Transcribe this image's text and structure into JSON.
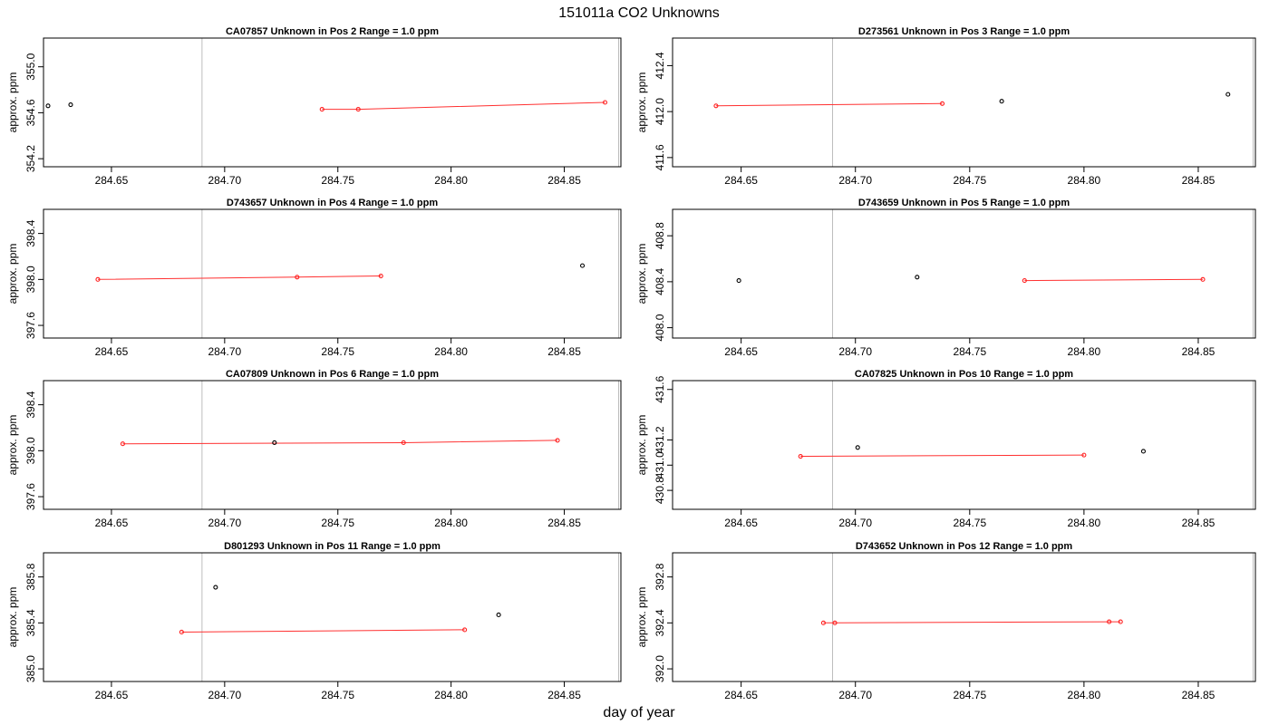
{
  "figure": {
    "title": "151011a  CO2 Unknowns",
    "xlabel": "day of year"
  },
  "chart_data": [
    {
      "type": "scatter",
      "title": "CA07857    Unknown in Pos 2         Range = 1.0 ppm",
      "ylabel": "approx. ppm",
      "xlim": [
        284.62,
        284.875
      ],
      "ylim": [
        354.13,
        355.25
      ],
      "x_ticks": [
        284.65,
        284.7,
        284.75,
        284.8,
        284.85
      ],
      "y_ticks": [
        354.2,
        354.6,
        355.0
      ],
      "vlines": [
        284.69,
        284.874
      ],
      "points": [
        {
          "x": 284.622,
          "y": 354.66,
          "color": "black"
        },
        {
          "x": 284.632,
          "y": 354.67,
          "color": "black"
        },
        {
          "x": 284.743,
          "y": 354.63,
          "color": "red"
        },
        {
          "x": 284.759,
          "y": 354.63,
          "color": "red"
        },
        {
          "x": 284.868,
          "y": 354.69,
          "color": "red"
        }
      ],
      "line": [
        [
          284.743,
          354.63
        ],
        [
          284.759,
          354.63
        ],
        [
          284.868,
          354.69
        ]
      ]
    },
    {
      "type": "scatter",
      "title": "D273561    Unknown in Pos 3         Range = 1.0 ppm",
      "ylabel": "approx. ppm",
      "xlim": [
        284.62,
        284.875
      ],
      "ylim": [
        411.52,
        412.64
      ],
      "x_ticks": [
        284.65,
        284.7,
        284.75,
        284.8,
        284.85
      ],
      "y_ticks": [
        411.6,
        412.0,
        412.4
      ],
      "vlines": [
        284.69,
        284.874
      ],
      "points": [
        {
          "x": 284.639,
          "y": 412.05,
          "color": "red"
        },
        {
          "x": 284.738,
          "y": 412.07,
          "color": "red"
        },
        {
          "x": 284.764,
          "y": 412.09,
          "color": "black"
        },
        {
          "x": 284.863,
          "y": 412.15,
          "color": "black"
        }
      ],
      "line": [
        [
          284.639,
          412.05
        ],
        [
          284.738,
          412.07
        ]
      ]
    },
    {
      "type": "scatter",
      "title": "D743657    Unknown in Pos 4         Range = 1.0 ppm",
      "ylabel": "approx. ppm",
      "xlim": [
        284.62,
        284.875
      ],
      "ylim": [
        397.49,
        398.61
      ],
      "x_ticks": [
        284.65,
        284.7,
        284.75,
        284.8,
        284.85
      ],
      "y_ticks": [
        397.6,
        398.0,
        398.4
      ],
      "vlines": [
        284.69,
        284.874
      ],
      "points": [
        {
          "x": 284.644,
          "y": 398.0,
          "color": "red"
        },
        {
          "x": 284.732,
          "y": 398.02,
          "color": "red"
        },
        {
          "x": 284.769,
          "y": 398.03,
          "color": "red"
        },
        {
          "x": 284.858,
          "y": 398.12,
          "color": "black"
        }
      ],
      "line": [
        [
          284.644,
          398.0
        ],
        [
          284.732,
          398.02
        ],
        [
          284.769,
          398.03
        ]
      ]
    },
    {
      "type": "scatter",
      "title": "D743659    Unknown in Pos 5         Range = 1.0 ppm",
      "ylabel": "approx. ppm",
      "xlim": [
        284.62,
        284.875
      ],
      "ylim": [
        407.91,
        409.03
      ],
      "x_ticks": [
        284.65,
        284.7,
        284.75,
        284.8,
        284.85
      ],
      "y_ticks": [
        408.0,
        408.4,
        408.8
      ],
      "vlines": [
        284.69,
        284.874
      ],
      "points": [
        {
          "x": 284.649,
          "y": 408.41,
          "color": "black"
        },
        {
          "x": 284.727,
          "y": 408.44,
          "color": "black"
        },
        {
          "x": 284.774,
          "y": 408.41,
          "color": "red"
        },
        {
          "x": 284.852,
          "y": 408.42,
          "color": "red"
        }
      ],
      "line": [
        [
          284.774,
          408.41
        ],
        [
          284.852,
          408.42
        ]
      ]
    },
    {
      "type": "scatter",
      "title": "CA07809    Unknown in Pos 6         Range = 1.0 ppm",
      "ylabel": "approx. ppm",
      "xlim": [
        284.62,
        284.875
      ],
      "ylim": [
        397.49,
        398.61
      ],
      "x_ticks": [
        284.65,
        284.7,
        284.75,
        284.8,
        284.85
      ],
      "y_ticks": [
        397.6,
        398.0,
        398.4
      ],
      "vlines": [
        284.69,
        284.874
      ],
      "points": [
        {
          "x": 284.655,
          "y": 398.06,
          "color": "red"
        },
        {
          "x": 284.722,
          "y": 398.07,
          "color": "black"
        },
        {
          "x": 284.779,
          "y": 398.07,
          "color": "red"
        },
        {
          "x": 284.847,
          "y": 398.09,
          "color": "red"
        }
      ],
      "line": [
        [
          284.655,
          398.06
        ],
        [
          284.779,
          398.07
        ],
        [
          284.847,
          398.09
        ]
      ]
    },
    {
      "type": "scatter",
      "title": "CA07825    Unknown in Pos 10         Range = 1.0 ppm",
      "ylabel": "approx. ppm",
      "xlim": [
        284.62,
        284.875
      ],
      "ylim": [
        430.65,
        431.67
      ],
      "x_ticks": [
        284.65,
        284.7,
        284.75,
        284.8,
        284.85
      ],
      "y_ticks": [
        430.8,
        431.0,
        431.2,
        431.6
      ],
      "vlines": [
        284.69,
        284.874
      ],
      "points": [
        {
          "x": 284.676,
          "y": 431.07,
          "color": "red"
        },
        {
          "x": 284.701,
          "y": 431.14,
          "color": "black"
        },
        {
          "x": 284.8,
          "y": 431.08,
          "color": "red"
        },
        {
          "x": 284.826,
          "y": 431.11,
          "color": "black"
        }
      ],
      "line": [
        [
          284.676,
          431.07
        ],
        [
          284.8,
          431.08
        ]
      ]
    },
    {
      "type": "scatter",
      "title": "D801293    Unknown in Pos 11         Range = 1.0 ppm",
      "ylabel": "approx. ppm",
      "xlim": [
        284.62,
        284.875
      ],
      "ylim": [
        384.89,
        386.01
      ],
      "x_ticks": [
        284.65,
        284.7,
        284.75,
        284.8,
        284.85
      ],
      "y_ticks": [
        385.0,
        385.4,
        385.8
      ],
      "vlines": [
        284.69,
        284.874
      ],
      "points": [
        {
          "x": 284.681,
          "y": 385.32,
          "color": "red"
        },
        {
          "x": 284.696,
          "y": 385.71,
          "color": "black"
        },
        {
          "x": 284.806,
          "y": 385.34,
          "color": "red"
        },
        {
          "x": 284.821,
          "y": 385.47,
          "color": "black"
        }
      ],
      "line": [
        [
          284.681,
          385.32
        ],
        [
          284.806,
          385.34
        ]
      ]
    },
    {
      "type": "scatter",
      "title": "D743652    Unknown in Pos 12         Range = 1.0 ppm",
      "ylabel": "approx. ppm",
      "xlim": [
        284.62,
        284.875
      ],
      "ylim": [
        391.89,
        393.01
      ],
      "x_ticks": [
        284.65,
        284.7,
        284.75,
        284.8,
        284.85
      ],
      "y_ticks": [
        392.0,
        392.4,
        392.8
      ],
      "vlines": [
        284.69,
        284.874
      ],
      "points": [
        {
          "x": 284.686,
          "y": 392.4,
          "color": "red"
        },
        {
          "x": 284.691,
          "y": 392.4,
          "color": "red"
        },
        {
          "x": 284.811,
          "y": 392.41,
          "color": "red"
        },
        {
          "x": 284.816,
          "y": 392.41,
          "color": "red"
        }
      ],
      "line": [
        [
          284.686,
          392.4
        ],
        [
          284.691,
          392.4
        ],
        [
          284.811,
          392.41
        ],
        [
          284.816,
          392.41
        ]
      ]
    }
  ]
}
